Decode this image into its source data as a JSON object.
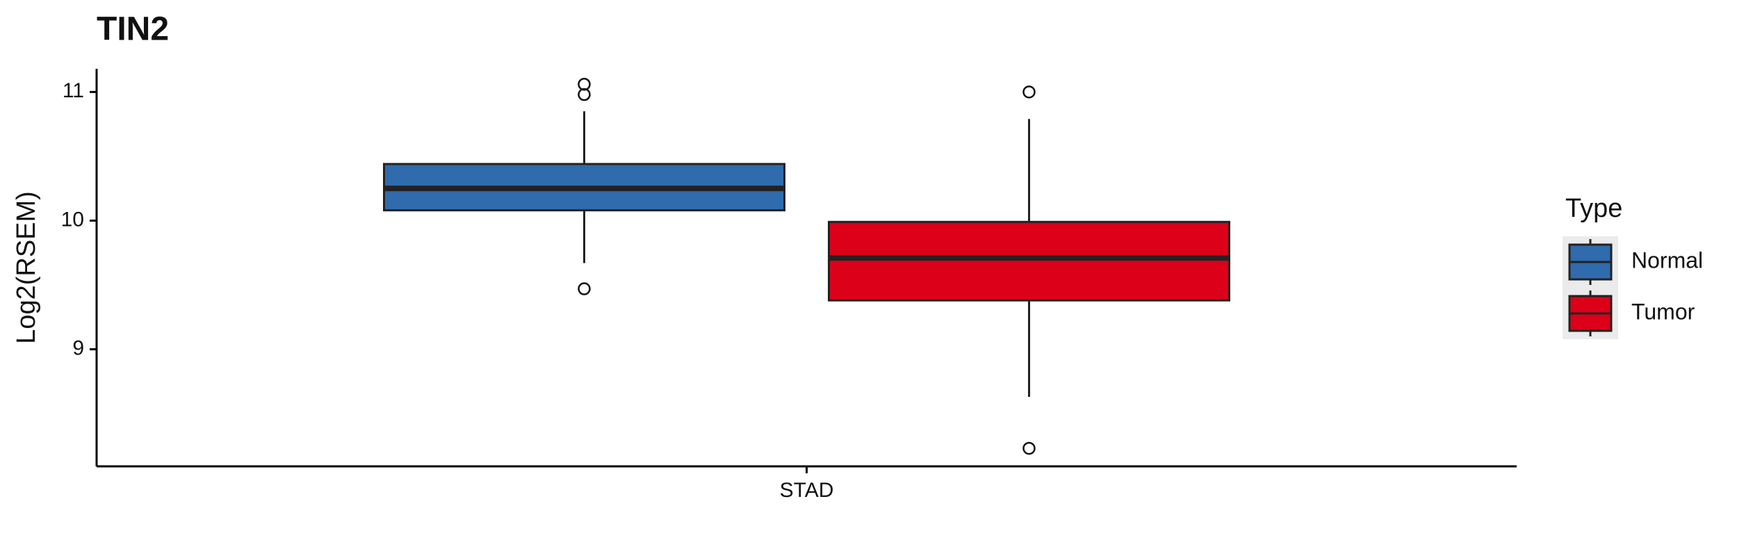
{
  "chart_data": {
    "type": "boxplot",
    "title": "TIN2",
    "y_label": "Log2(RSEM)",
    "categories": [
      "STAD"
    ],
    "legend_title": "Type",
    "series": [
      {
        "name": "Normal",
        "color": "#2f6bad",
        "boxes": [
          {
            "min": 9.67,
            "q1": 10.08,
            "median": 10.25,
            "q3": 10.44,
            "max": 10.85,
            "outliers": [
              11.06,
              10.98,
              9.47
            ]
          }
        ]
      },
      {
        "name": "Tumor",
        "color": "#dc0019",
        "boxes": [
          {
            "min": 8.63,
            "q1": 9.38,
            "median": 9.71,
            "q3": 9.99,
            "max": 10.79,
            "outliers": [
              11.0,
              8.23
            ]
          }
        ]
      }
    ],
    "ylim": [
      8.09,
      11.18
    ],
    "yticks": [
      9,
      10,
      11
    ]
  }
}
